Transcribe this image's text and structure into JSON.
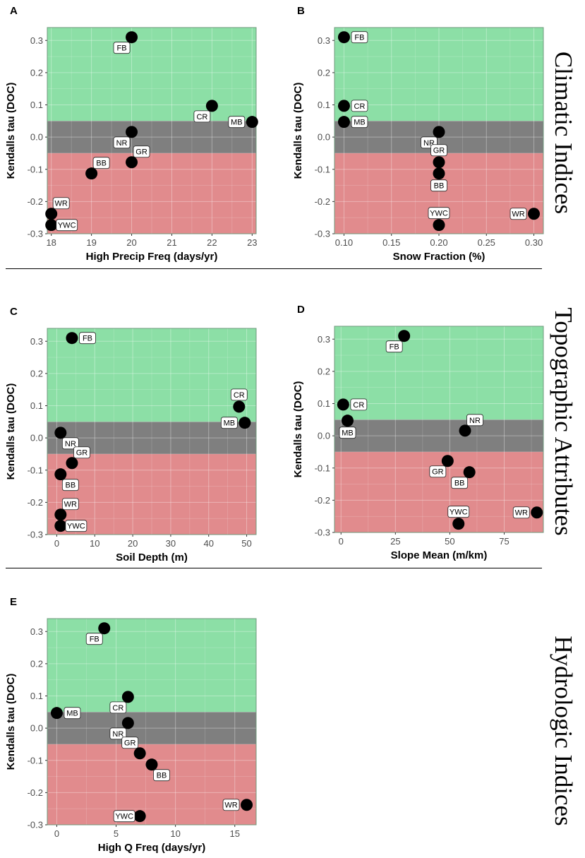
{
  "sections": [
    {
      "title": "Climatic Indices"
    },
    {
      "title": "Topographic Attributes"
    },
    {
      "title": "Hydrologic Indices"
    }
  ],
  "band_colors": {
    "positive": "#8cdfa6",
    "neutral": "#7f7f7f",
    "negative": "#e18b8d"
  },
  "chart_data": [
    {
      "type": "scatter",
      "panel": "A",
      "xlabel": "High Precip Freq (days/yr)",
      "ylabel": "Kendalls tau (DOC)",
      "xlim": [
        17.9,
        23.1
      ],
      "ylim": [
        -0.3,
        0.34
      ],
      "xticks": [
        18,
        19,
        20,
        21,
        22,
        23
      ],
      "xtick_labels": [
        "18",
        "19",
        "20",
        "21",
        "22",
        "23"
      ],
      "yticks": [
        -0.3,
        -0.2,
        -0.1,
        0.0,
        0.1,
        0.2,
        0.3
      ],
      "ytick_labels": [
        "-0.3",
        "-0.2",
        "-0.1",
        "0.0",
        "0.1",
        "0.2",
        "0.3"
      ],
      "bands": [
        -0.05,
        0.05
      ],
      "points": [
        {
          "label": "FB",
          "x": 20,
          "y": 0.31,
          "pos": "bl"
        },
        {
          "label": "CR",
          "x": 22,
          "y": 0.097,
          "pos": "bl"
        },
        {
          "label": "MB",
          "x": 23,
          "y": 0.047,
          "pos": "l"
        },
        {
          "label": "NR",
          "x": 20,
          "y": 0.016,
          "pos": "bl"
        },
        {
          "label": "GR",
          "x": 20,
          "y": -0.078,
          "pos": "tr"
        },
        {
          "label": "BB",
          "x": 19,
          "y": -0.113,
          "pos": "tr"
        },
        {
          "label": "WR",
          "x": 18,
          "y": -0.238,
          "pos": "tr"
        },
        {
          "label": "YWC",
          "x": 18,
          "y": -0.273,
          "pos": "r"
        }
      ]
    },
    {
      "type": "scatter",
      "panel": "B",
      "xlabel": "Snow Fraction (%)",
      "ylabel": "Kendalls tau (DOC)",
      "xlim": [
        0.09,
        0.31
      ],
      "ylim": [
        -0.3,
        0.34
      ],
      "xticks": [
        0.1,
        0.15,
        0.2,
        0.25,
        0.3
      ],
      "xtick_labels": [
        "0.10",
        "0.15",
        "0.20",
        "0.25",
        "0.30"
      ],
      "yticks": [
        -0.3,
        -0.2,
        -0.1,
        0.0,
        0.1,
        0.2,
        0.3
      ],
      "ytick_labels": [
        "-0.3",
        "-0.2",
        "-0.1",
        "0.0",
        "0.1",
        "0.2",
        "0.3"
      ],
      "bands": [
        -0.05,
        0.05
      ],
      "points": [
        {
          "label": "FB",
          "x": 0.1,
          "y": 0.31,
          "pos": "r"
        },
        {
          "label": "CR",
          "x": 0.1,
          "y": 0.097,
          "pos": "r"
        },
        {
          "label": "MB",
          "x": 0.1,
          "y": 0.047,
          "pos": "r"
        },
        {
          "label": "NR",
          "x": 0.2,
          "y": 0.016,
          "pos": "bl"
        },
        {
          "label": "GR",
          "x": 0.2,
          "y": -0.078,
          "pos": "t"
        },
        {
          "label": "BB",
          "x": 0.2,
          "y": -0.113,
          "pos": "b"
        },
        {
          "label": "YWC",
          "x": 0.2,
          "y": -0.273,
          "pos": "t"
        },
        {
          "label": "WR",
          "x": 0.3,
          "y": -0.238,
          "pos": "l"
        }
      ]
    },
    {
      "type": "scatter",
      "panel": "C",
      "xlabel": "Soil Depth (m)",
      "ylabel": "Kendalls tau (DOC)",
      "xlim": [
        -2.5,
        52.5
      ],
      "ylim": [
        -0.3,
        0.34
      ],
      "xticks": [
        0,
        10,
        20,
        30,
        40,
        50
      ],
      "xtick_labels": [
        "0",
        "10",
        "20",
        "30",
        "40",
        "50"
      ],
      "yticks": [
        -0.3,
        -0.2,
        -0.1,
        0.0,
        0.1,
        0.2,
        0.3
      ],
      "ytick_labels": [
        "-0.3",
        "-0.2",
        "-0.1",
        "0.0",
        "0.1",
        "0.2",
        "0.3"
      ],
      "bands": [
        -0.05,
        0.05
      ],
      "points": [
        {
          "label": "FB",
          "x": 4,
          "y": 0.31,
          "pos": "r"
        },
        {
          "label": "CR",
          "x": 48,
          "y": 0.097,
          "pos": "t"
        },
        {
          "label": "MB",
          "x": 49.5,
          "y": 0.047,
          "pos": "l"
        },
        {
          "label": "NR",
          "x": 1,
          "y": 0.016,
          "pos": "br"
        },
        {
          "label": "GR",
          "x": 4,
          "y": -0.078,
          "pos": "tr"
        },
        {
          "label": "BB",
          "x": 1,
          "y": -0.113,
          "pos": "br"
        },
        {
          "label": "WR",
          "x": 1,
          "y": -0.238,
          "pos": "tr"
        },
        {
          "label": "YWC",
          "x": 1,
          "y": -0.273,
          "pos": "r"
        }
      ]
    },
    {
      "type": "scatter",
      "panel": "D",
      "xlabel": "Slope Mean (m/km)",
      "ylabel": "Kendalls tau (DOC)",
      "xlim": [
        -3,
        93
      ],
      "ylim": [
        -0.3,
        0.34
      ],
      "xticks": [
        0,
        25,
        50,
        75
      ],
      "xtick_labels": [
        "0",
        "25",
        "50",
        "75"
      ],
      "yticks": [
        -0.3,
        -0.2,
        -0.1,
        0.0,
        0.1,
        0.2,
        0.3
      ],
      "ytick_labels": [
        "-0.3",
        "-0.2",
        "-0.1",
        "0.0",
        "0.1",
        "0.2",
        "0.3"
      ],
      "bands": [
        -0.05,
        0.05
      ],
      "points": [
        {
          "label": "FB",
          "x": 29,
          "y": 0.31,
          "pos": "bl"
        },
        {
          "label": "CR",
          "x": 1,
          "y": 0.097,
          "pos": "r"
        },
        {
          "label": "MB",
          "x": 3,
          "y": 0.047,
          "pos": "b"
        },
        {
          "label": "NR",
          "x": 57,
          "y": 0.016,
          "pos": "tr"
        },
        {
          "label": "GR",
          "x": 49,
          "y": -0.078,
          "pos": "bl"
        },
        {
          "label": "BB",
          "x": 59,
          "y": -0.113,
          "pos": "bl"
        },
        {
          "label": "YWC",
          "x": 54,
          "y": -0.273,
          "pos": "t"
        },
        {
          "label": "WR",
          "x": 90,
          "y": -0.238,
          "pos": "l"
        }
      ]
    },
    {
      "type": "scatter",
      "panel": "E",
      "xlabel": "High Q Freq (days/yr)",
      "ylabel": "Kendalls tau (DOC)",
      "xlim": [
        -0.8,
        16.8
      ],
      "ylim": [
        -0.3,
        0.34
      ],
      "xticks": [
        0,
        5,
        10,
        15
      ],
      "xtick_labels": [
        "0",
        "5",
        "10",
        "15"
      ],
      "yticks": [
        -0.3,
        -0.2,
        -0.1,
        0.0,
        0.1,
        0.2,
        0.3
      ],
      "ytick_labels": [
        "-0.3",
        "-0.2",
        "-0.1",
        "0.0",
        "0.1",
        "0.2",
        "0.3"
      ],
      "bands": [
        -0.05,
        0.05
      ],
      "points": [
        {
          "label": "FB",
          "x": 4,
          "y": 0.31,
          "pos": "bl"
        },
        {
          "label": "CR",
          "x": 6,
          "y": 0.097,
          "pos": "bl"
        },
        {
          "label": "MB",
          "x": 0,
          "y": 0.047,
          "pos": "r"
        },
        {
          "label": "NR",
          "x": 6,
          "y": 0.016,
          "pos": "bl"
        },
        {
          "label": "GR",
          "x": 7,
          "y": -0.078,
          "pos": "tl"
        },
        {
          "label": "BB",
          "x": 8,
          "y": -0.113,
          "pos": "br"
        },
        {
          "label": "YWC",
          "x": 7,
          "y": -0.273,
          "pos": "l"
        },
        {
          "label": "WR",
          "x": 16,
          "y": -0.238,
          "pos": "l"
        }
      ]
    }
  ]
}
